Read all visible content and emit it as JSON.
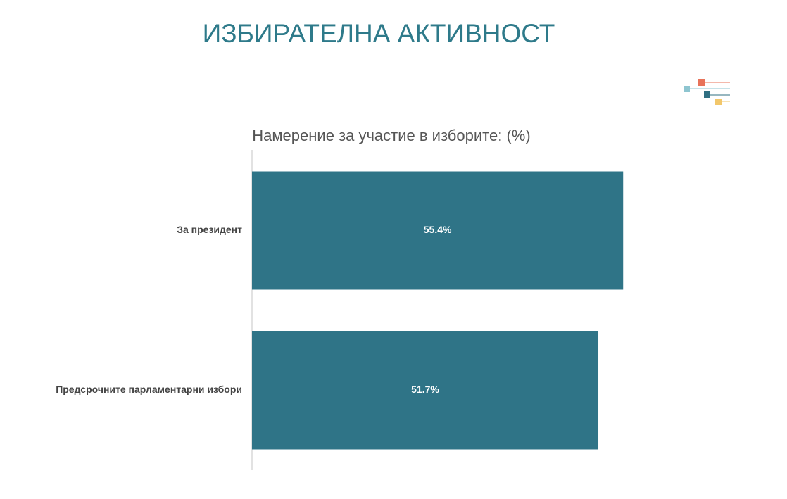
{
  "header": {
    "title": "ИЗБИРАТЕЛНА АКТИВНОСТ"
  },
  "chart_data": {
    "type": "bar",
    "orientation": "horizontal",
    "title": "Намерение за участие в изборите: (%)",
    "categories": [
      "За президент",
      "Предсрочните парламентарни избори"
    ],
    "values": [
      55.4,
      51.7
    ],
    "value_labels": [
      "55.4%",
      "51.7%"
    ],
    "color": "#2f7487",
    "xlim": [
      0,
      60
    ]
  }
}
